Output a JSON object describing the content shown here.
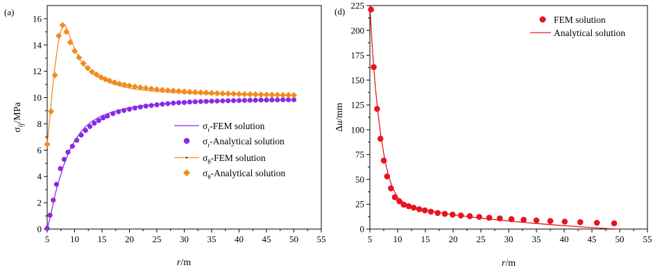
{
  "chart_data": [
    {
      "type": "line",
      "panel_label": "(a)",
      "xlabel": "r/m",
      "ylabel": "σij/MPa",
      "xlim": [
        5,
        55
      ],
      "ylim": [
        0,
        17
      ],
      "xticks": [
        "5",
        "10",
        "15",
        "20",
        "25",
        "30",
        "35",
        "40",
        "45",
        "50",
        "55"
      ],
      "yticks": [
        "0",
        "2",
        "4",
        "6",
        "8",
        "10",
        "12",
        "14",
        "16"
      ],
      "legend_position": "center-right",
      "legend": [
        "σr-FEM solution",
        "σr-Analytical solution",
        "σθ-FEM solution",
        "σθ-Analytical solution"
      ],
      "colors": {
        "sigma_r": "#8a2be2",
        "sigma_theta": "#f08c1e"
      },
      "series": [
        {
          "name": "σr-FEM solution",
          "style": "line",
          "x": [
            5,
            5.5,
            6,
            6.5,
            7,
            7.5,
            8,
            9,
            10,
            11,
            12,
            13,
            14,
            15,
            17,
            19,
            21,
            23,
            25,
            28,
            31,
            34,
            37,
            40,
            43,
            46,
            50
          ],
          "values": [
            0,
            0.8,
            1.75,
            2.7,
            3.5,
            4.15,
            4.85,
            5.9,
            6.7,
            7.3,
            7.8,
            8.15,
            8.4,
            8.62,
            8.92,
            9.14,
            9.3,
            9.42,
            9.5,
            9.6,
            9.66,
            9.71,
            9.75,
            9.78,
            9.8,
            9.81,
            9.83
          ]
        },
        {
          "name": "σr-Analytical solution",
          "style": "circle",
          "x": [
            5,
            5.5,
            6.1,
            6.7,
            7.4,
            8.1,
            8.8,
            9.6,
            10.4,
            11.2,
            12,
            12.8,
            13.6,
            14.4,
            15.2,
            16,
            17,
            18,
            19,
            20,
            21,
            22,
            23,
            24,
            25,
            26,
            27,
            28,
            29,
            30,
            31,
            32,
            33,
            34,
            35,
            36,
            37,
            38,
            39,
            40,
            41,
            42,
            43,
            44,
            45,
            46,
            47,
            48,
            49,
            50
          ],
          "values": [
            0.05,
            1.05,
            2.2,
            3.4,
            4.6,
            5.3,
            5.85,
            6.3,
            6.75,
            7.15,
            7.5,
            7.8,
            8.05,
            8.25,
            8.45,
            8.6,
            8.78,
            8.92,
            9.02,
            9.12,
            9.2,
            9.28,
            9.35,
            9.4,
            9.45,
            9.5,
            9.54,
            9.58,
            9.61,
            9.63,
            9.66,
            9.68,
            9.7,
            9.71,
            9.73,
            9.74,
            9.75,
            9.76,
            9.77,
            9.78,
            9.79,
            9.8,
            9.8,
            9.81,
            9.81,
            9.82,
            9.82,
            9.83,
            9.83,
            9.83
          ]
        },
        {
          "name": "σθ-FEM solution",
          "style": "line",
          "x": [
            5,
            5.5,
            6,
            6.5,
            7,
            7.5,
            8,
            8.3,
            9,
            10,
            11,
            12,
            13,
            14,
            15,
            17,
            19,
            21,
            23,
            25,
            28,
            31,
            34,
            37,
            40,
            43,
            46,
            50
          ],
          "values": [
            6.4,
            8.6,
            10.8,
            12.6,
            14.1,
            15.1,
            15.55,
            15.5,
            14.8,
            13.7,
            12.9,
            12.35,
            11.95,
            11.65,
            11.4,
            11.05,
            10.8,
            10.65,
            10.55,
            10.47,
            10.38,
            10.32,
            10.28,
            10.25,
            10.22,
            10.2,
            10.18,
            10.17
          ]
        },
        {
          "name": "σθ-Analytical solution",
          "style": "diamond",
          "x": [
            5,
            5.7,
            6.4,
            7.1,
            7.8,
            8.5,
            9.2,
            10,
            10.8,
            11.6,
            12.4,
            13.2,
            14,
            14.8,
            15.6,
            16.4,
            17.3,
            18.2,
            19.1,
            20,
            21,
            22,
            23,
            24,
            25,
            26,
            27,
            28,
            29,
            30,
            31,
            32,
            33,
            34,
            35,
            36,
            37,
            38,
            39,
            40,
            41,
            42,
            43,
            44,
            45,
            46,
            47,
            48,
            49,
            50
          ],
          "values": [
            6.45,
            8.95,
            11.7,
            14.7,
            15.5,
            15.0,
            14.2,
            13.55,
            13.05,
            12.6,
            12.25,
            11.95,
            11.75,
            11.55,
            11.4,
            11.28,
            11.15,
            11.05,
            10.97,
            10.9,
            10.83,
            10.77,
            10.72,
            10.67,
            10.62,
            10.58,
            10.55,
            10.52,
            10.49,
            10.46,
            10.43,
            10.41,
            10.39,
            10.37,
            10.35,
            10.33,
            10.31,
            10.3,
            10.29,
            10.27,
            10.26,
            10.25,
            10.24,
            10.23,
            10.22,
            10.21,
            10.2,
            10.19,
            10.19,
            10.18
          ]
        }
      ]
    },
    {
      "type": "line",
      "panel_label": "(d)",
      "xlabel": "r/m",
      "ylabel": "Δu/mm",
      "xlim": [
        5,
        55
      ],
      "ylim": [
        0,
        225
      ],
      "xticks": [
        "5",
        "10",
        "15",
        "20",
        "25",
        "30",
        "35",
        "40",
        "45",
        "50",
        "55"
      ],
      "yticks": [
        "0",
        "25",
        "50",
        "75",
        "100",
        "125",
        "150",
        "175",
        "200",
        "225"
      ],
      "legend_position": "top-right",
      "legend": [
        "FEM solution",
        "Analytical solution"
      ],
      "colors": {
        "fem": "#e8141e",
        "analytical": "#e8141e"
      },
      "series": [
        {
          "name": "FEM solution",
          "style": "circle",
          "x": [
            5.2,
            5.7,
            6.3,
            6.9,
            7.5,
            8.1,
            8.8,
            9.5,
            10.3,
            11.1,
            12.0,
            12.9,
            13.9,
            14.9,
            16.0,
            17.2,
            18.5,
            19.9,
            21.4,
            23.0,
            24.7,
            26.5,
            28.4,
            30.5,
            32.7,
            35.0,
            37.5,
            40.1,
            42.9,
            45.9,
            49.0
          ],
          "values": [
            221,
            163,
            121,
            91,
            69,
            53,
            41,
            32,
            28,
            24.5,
            23,
            21.5,
            20,
            18.8,
            17.5,
            16.2,
            15.3,
            14.5,
            13.7,
            13,
            12.2,
            11.4,
            10.7,
            10,
            9.3,
            8.7,
            8.1,
            7.5,
            6.9,
            6.3,
            5.8
          ]
        },
        {
          "name": "Analytical solution",
          "style": "line",
          "x": [
            5,
            5.5,
            6,
            6.5,
            7,
            7.5,
            8,
            8.5,
            9,
            9.5,
            10,
            11,
            12,
            13,
            14,
            15,
            17,
            19,
            21,
            23,
            25,
            28,
            31,
            34,
            37,
            40,
            43,
            46,
            48,
            50
          ],
          "values": [
            224,
            177,
            142,
            115,
            93,
            76,
            62,
            51,
            43,
            37,
            32,
            27,
            24,
            22,
            20.3,
            19,
            17,
            15.2,
            13.7,
            12.3,
            11,
            9.2,
            7.6,
            6.1,
            4.7,
            3.4,
            2.2,
            1.1,
            0.4,
            0
          ]
        }
      ]
    }
  ]
}
